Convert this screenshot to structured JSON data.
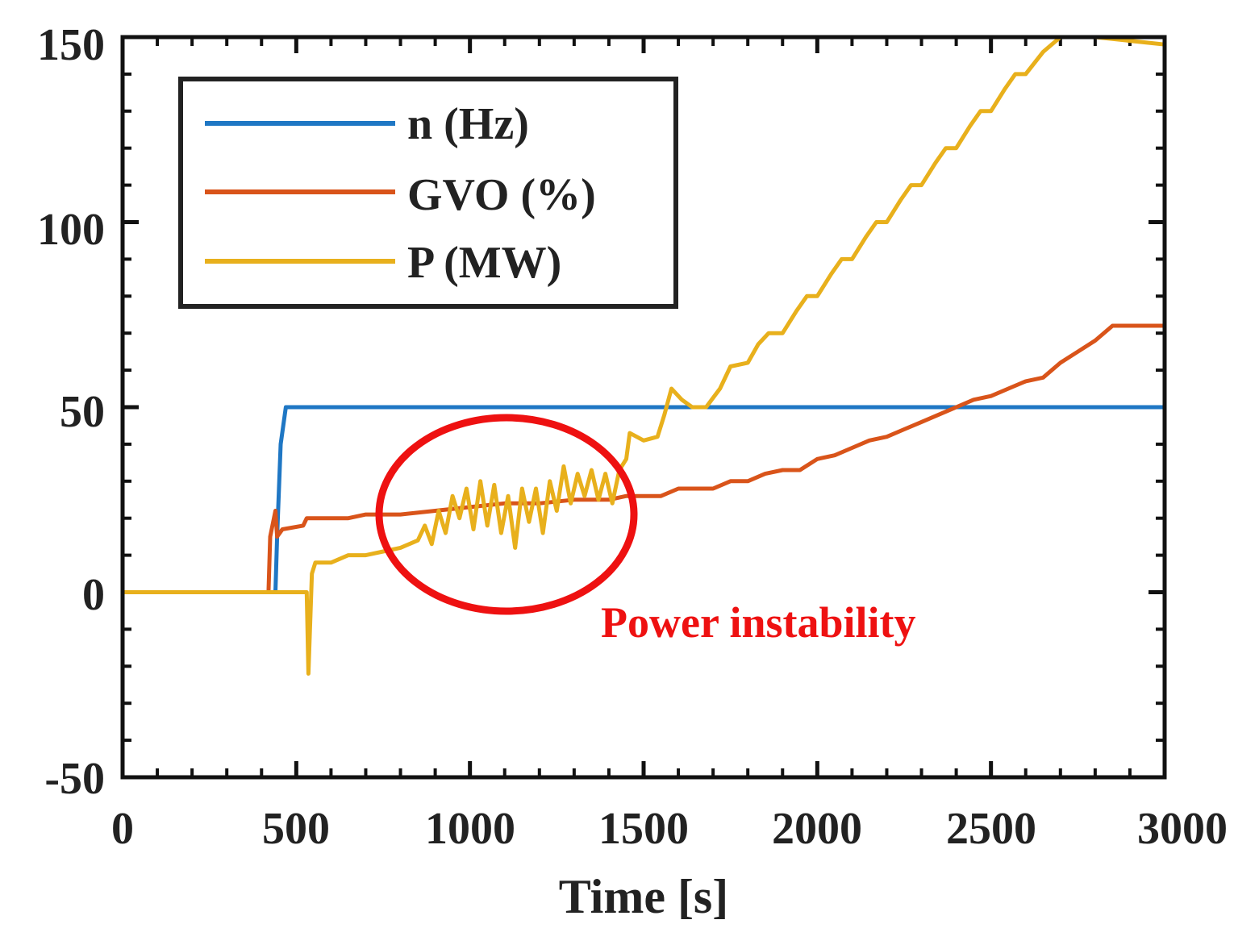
{
  "chart_data": {
    "type": "line",
    "title": "",
    "xlabel": "Time [s]",
    "ylabel": "",
    "xlim": [
      0,
      3000
    ],
    "ylim": [
      -50,
      150
    ],
    "xticks": [
      0,
      500,
      1000,
      1500,
      2000,
      2500,
      3000
    ],
    "yticks": [
      -50,
      0,
      50,
      100,
      150
    ],
    "xtick_labels": [
      "0",
      "500",
      "1000",
      "1500",
      "2000",
      "2500",
      "3000"
    ],
    "ytick_labels": [
      "-50",
      "0",
      "50",
      "100",
      "150"
    ],
    "grid": false,
    "legend_position": "top-left",
    "series": [
      {
        "name": "n (Hz)",
        "color": "#1f77c4",
        "points": [
          [
            0,
            0
          ],
          [
            440,
            0
          ],
          [
            445,
            15
          ],
          [
            455,
            40
          ],
          [
            470,
            50
          ],
          [
            700,
            50
          ],
          [
            1000,
            50
          ],
          [
            1500,
            50
          ],
          [
            2000,
            50
          ],
          [
            2500,
            50
          ],
          [
            3000,
            50
          ]
        ]
      },
      {
        "name": "GVO (%)",
        "color": "#d9541a",
        "points": [
          [
            0,
            0
          ],
          [
            420,
            0
          ],
          [
            425,
            15
          ],
          [
            440,
            22
          ],
          [
            445,
            15
          ],
          [
            460,
            17
          ],
          [
            520,
            18
          ],
          [
            530,
            20
          ],
          [
            650,
            20
          ],
          [
            700,
            21
          ],
          [
            800,
            21
          ],
          [
            900,
            22
          ],
          [
            1000,
            23
          ],
          [
            1100,
            24
          ],
          [
            1200,
            24
          ],
          [
            1300,
            25
          ],
          [
            1400,
            25
          ],
          [
            1450,
            26
          ],
          [
            1550,
            26
          ],
          [
            1600,
            28
          ],
          [
            1650,
            28
          ],
          [
            1700,
            28
          ],
          [
            1750,
            30
          ],
          [
            1800,
            30
          ],
          [
            1850,
            32
          ],
          [
            1900,
            33
          ],
          [
            1950,
            33
          ],
          [
            2000,
            36
          ],
          [
            2050,
            37
          ],
          [
            2100,
            39
          ],
          [
            2150,
            41
          ],
          [
            2200,
            42
          ],
          [
            2250,
            44
          ],
          [
            2300,
            46
          ],
          [
            2350,
            48
          ],
          [
            2400,
            50
          ],
          [
            2450,
            52
          ],
          [
            2500,
            53
          ],
          [
            2550,
            55
          ],
          [
            2600,
            57
          ],
          [
            2650,
            58
          ],
          [
            2700,
            62
          ],
          [
            2750,
            65
          ],
          [
            2800,
            68
          ],
          [
            2850,
            72
          ],
          [
            3000,
            72
          ]
        ]
      },
      {
        "name": "P (MW)",
        "color": "#e8b01c",
        "points": [
          [
            0,
            0
          ],
          [
            520,
            0
          ],
          [
            530,
            0
          ],
          [
            535,
            -22
          ],
          [
            545,
            5
          ],
          [
            555,
            8
          ],
          [
            600,
            8
          ],
          [
            650,
            10
          ],
          [
            700,
            10
          ],
          [
            750,
            11
          ],
          [
            800,
            12
          ],
          [
            850,
            14
          ],
          [
            870,
            18
          ],
          [
            890,
            13
          ],
          [
            910,
            22
          ],
          [
            930,
            16
          ],
          [
            950,
            26
          ],
          [
            970,
            20
          ],
          [
            990,
            28
          ],
          [
            1010,
            17
          ],
          [
            1030,
            30
          ],
          [
            1050,
            18
          ],
          [
            1070,
            29
          ],
          [
            1090,
            16
          ],
          [
            1110,
            26
          ],
          [
            1130,
            12
          ],
          [
            1150,
            28
          ],
          [
            1170,
            19
          ],
          [
            1190,
            28
          ],
          [
            1210,
            16
          ],
          [
            1230,
            30
          ],
          [
            1250,
            22
          ],
          [
            1270,
            34
          ],
          [
            1290,
            24
          ],
          [
            1310,
            32
          ],
          [
            1330,
            26
          ],
          [
            1350,
            33
          ],
          [
            1370,
            25
          ],
          [
            1390,
            32
          ],
          [
            1410,
            24
          ],
          [
            1430,
            33
          ],
          [
            1450,
            36
          ],
          [
            1460,
            43
          ],
          [
            1500,
            41
          ],
          [
            1540,
            42
          ],
          [
            1560,
            48
          ],
          [
            1580,
            55
          ],
          [
            1610,
            52
          ],
          [
            1640,
            50
          ],
          [
            1680,
            50
          ],
          [
            1720,
            55
          ],
          [
            1750,
            61
          ],
          [
            1800,
            62
          ],
          [
            1830,
            67
          ],
          [
            1860,
            70
          ],
          [
            1900,
            70
          ],
          [
            1940,
            76
          ],
          [
            1970,
            80
          ],
          [
            2000,
            80
          ],
          [
            2040,
            86
          ],
          [
            2070,
            90
          ],
          [
            2100,
            90
          ],
          [
            2140,
            96
          ],
          [
            2170,
            100
          ],
          [
            2200,
            100
          ],
          [
            2240,
            106
          ],
          [
            2270,
            110
          ],
          [
            2300,
            110
          ],
          [
            2340,
            116
          ],
          [
            2370,
            120
          ],
          [
            2400,
            120
          ],
          [
            2440,
            126
          ],
          [
            2470,
            130
          ],
          [
            2500,
            130
          ],
          [
            2540,
            136
          ],
          [
            2570,
            140
          ],
          [
            2600,
            140
          ],
          [
            2650,
            146
          ],
          [
            2700,
            150
          ],
          [
            2800,
            150
          ],
          [
            3000,
            148
          ]
        ]
      }
    ],
    "annotations": [
      {
        "text": "Power instability",
        "color": "#ee1111",
        "highlight": "ellipse",
        "center": [
          1100,
          20
        ]
      }
    ]
  }
}
